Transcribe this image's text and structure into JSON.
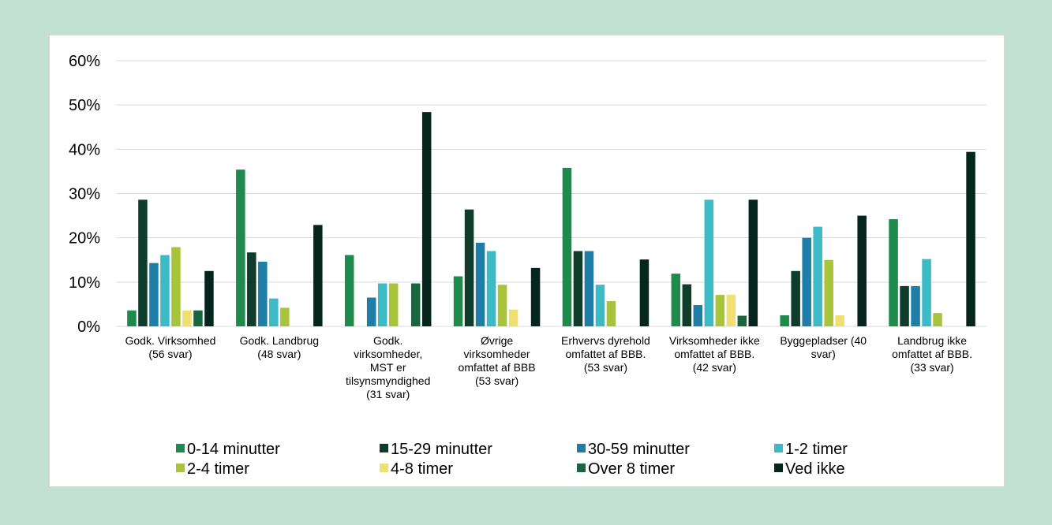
{
  "chart_data": {
    "type": "bar",
    "title": "",
    "xlabel": "",
    "ylabel": "",
    "ylim": [
      0,
      60
    ],
    "y_ticks": [
      "0%",
      "10%",
      "20%",
      "30%",
      "40%",
      "50%",
      "60%"
    ],
    "grid": true,
    "legend_position": "bottom",
    "categories": [
      [
        "Godk. Virksomhed",
        "(56 svar)"
      ],
      [
        "Godk. Landbrug",
        "(48 svar)"
      ],
      [
        "Godk.",
        "virksomheder,",
        "MST er",
        "tilsynsmyndighed",
        "(31 svar)"
      ],
      [
        "Øvrige",
        "virksomheder",
        "omfattet af BBB",
        "(53 svar)"
      ],
      [
        "Erhvervs dyrehold",
        "omfattet af BBB.",
        "(53 svar)"
      ],
      [
        "Virksomheder ikke",
        "omfattet af BBB.",
        "(42 svar)"
      ],
      [
        "Byggepladser (40",
        "svar)"
      ],
      [
        "Landbrug ikke",
        "omfattet af BBB.",
        "(33 svar)"
      ]
    ],
    "series": [
      {
        "name": "0-14 minutter",
        "color": "#1e8a4c",
        "values": [
          3.6,
          35.4,
          16.1,
          11.3,
          35.8,
          11.9,
          2.5,
          24.2
        ]
      },
      {
        "name": "15-29 minutter",
        "color": "#0e3d2c",
        "values": [
          28.6,
          16.7,
          0,
          26.4,
          17.0,
          9.5,
          12.5,
          9.1
        ]
      },
      {
        "name": "30-59 minutter",
        "color": "#1d7ea8",
        "values": [
          14.3,
          14.6,
          6.5,
          18.9,
          17.0,
          4.8,
          20.0,
          9.1
        ]
      },
      {
        "name": "1-2 timer",
        "color": "#3cbac6",
        "values": [
          16.1,
          6.3,
          9.7,
          17.0,
          9.4,
          28.6,
          22.5,
          15.2
        ]
      },
      {
        "name": "2-4 timer",
        "color": "#a8c43a",
        "values": [
          17.9,
          4.2,
          9.7,
          9.4,
          5.7,
          7.1,
          15.0,
          3.0
        ]
      },
      {
        "name": "4-8 timer",
        "color": "#f0df72",
        "values": [
          3.6,
          0,
          0,
          3.8,
          0,
          7.1,
          2.5,
          0
        ]
      },
      {
        "name": "Over 8 timer",
        "color": "#176640",
        "values": [
          3.6,
          0,
          9.7,
          0,
          0,
          2.4,
          0,
          0
        ]
      },
      {
        "name": "Ved ikke",
        "color": "#05261d",
        "values": [
          12.5,
          22.9,
          48.4,
          13.2,
          15.1,
          28.6,
          25.0,
          39.4
        ]
      }
    ]
  }
}
